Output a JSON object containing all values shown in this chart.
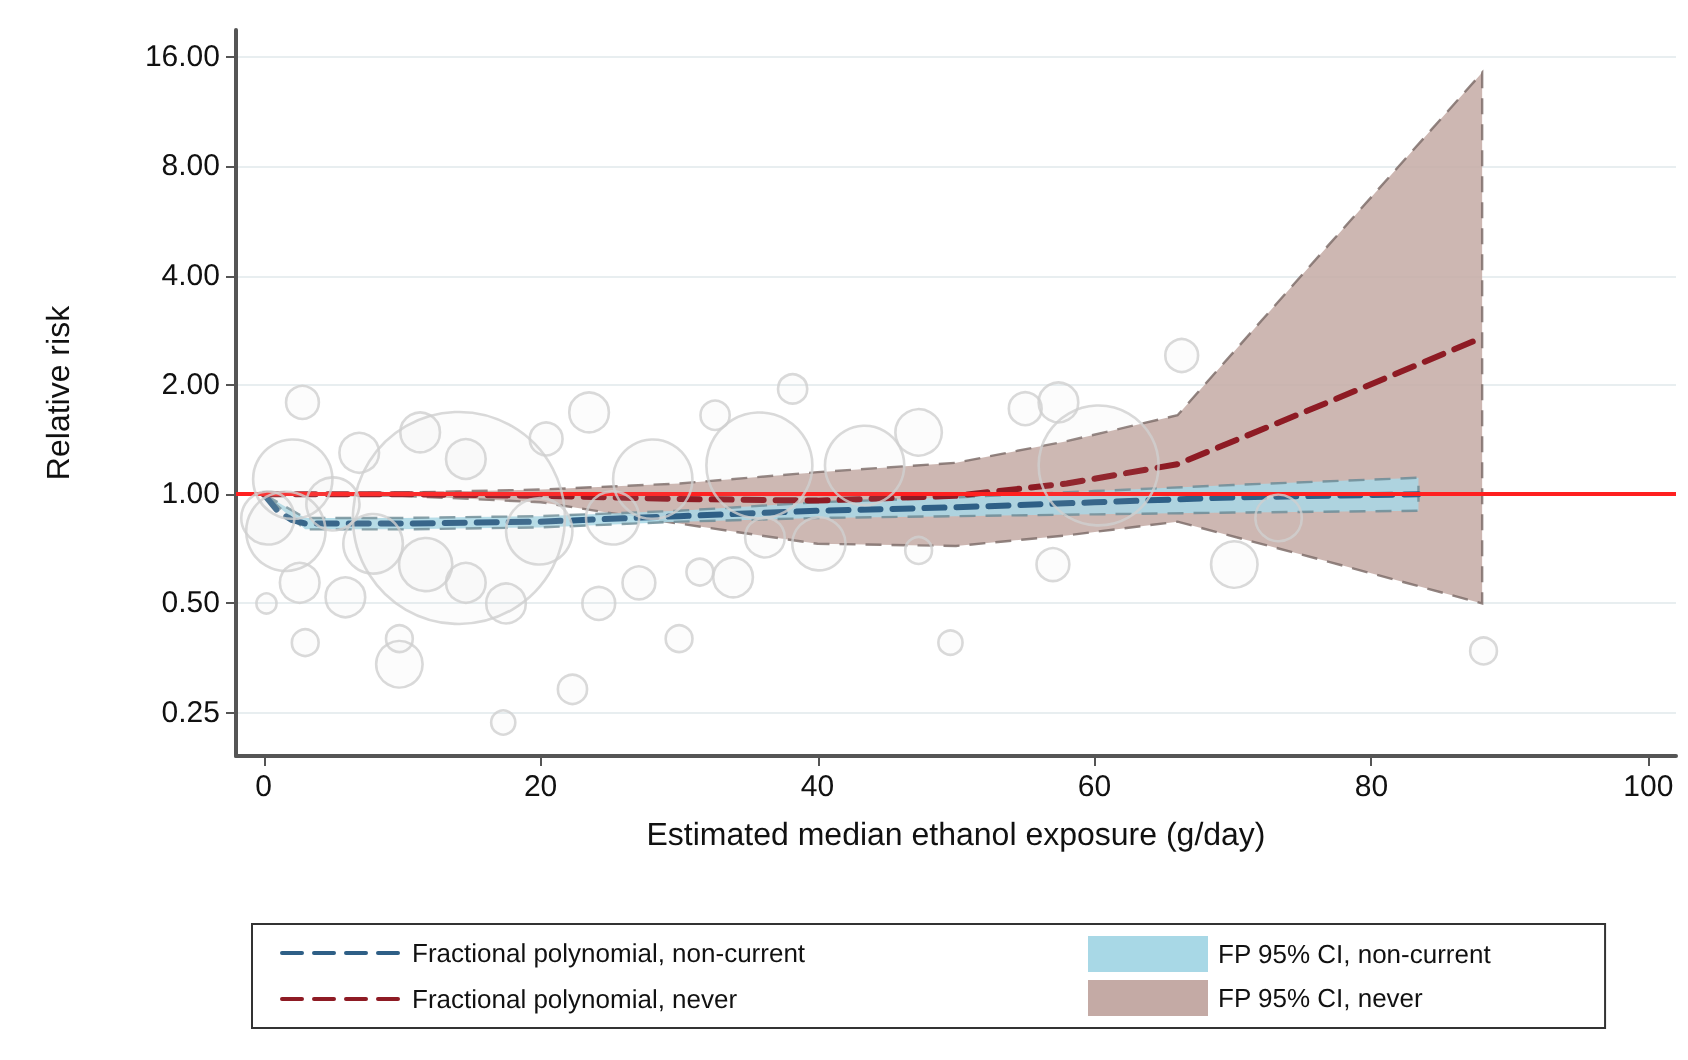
{
  "chart_data": {
    "type": "line",
    "xlabel": "Estimated median ethanol exposure (g/day)",
    "ylabel": "Relative risk",
    "xlim": [
      -2,
      102
    ],
    "xticks": [
      0,
      20,
      40,
      60,
      80,
      100
    ],
    "ylim": [
      0.19,
      19
    ],
    "yticks": [
      {
        "value": 0.25,
        "label": "0.25"
      },
      {
        "value": 0.5,
        "label": "0.50"
      },
      {
        "value": 1,
        "label": "1.00"
      },
      {
        "value": 2,
        "label": "2.00"
      },
      {
        "value": 4,
        "label": "4.00"
      },
      {
        "value": 8,
        "label": "8.00"
      },
      {
        "value": 16,
        "label": "16.00"
      }
    ],
    "log": "y",
    "grid": "y",
    "legend": "bottom",
    "ref_lines": [
      {
        "axis": "y",
        "value": 1,
        "color": "#ff2020"
      }
    ],
    "series": [
      {
        "type": "bubble",
        "color": "#d0d0d0",
        "marker": "circle",
        "x": [
          2.8,
          0.2,
          3.0,
          9.8,
          9.8,
          17.3,
          22.3,
          30.0,
          23.5,
          38.2,
          32.6,
          14.1,
          2.1,
          11.3,
          5.9,
          17.5,
          24.2,
          35.8,
          28.1,
          19.9,
          1.6,
          33.9,
          27.1,
          14.6,
          6.9,
          31.5,
          20.4,
          0.3,
          11.7,
          25.2,
          66.3,
          57.4,
          55.0,
          47.3,
          49.6,
          88.1,
          70.1,
          57.0,
          60.3,
          43.4,
          47.3,
          40.1,
          73.3,
          5.0,
          7.9,
          14.6,
          2.6,
          36.2
        ],
        "values": [
          1.79,
          0.5,
          0.39,
          0.34,
          0.4,
          0.235,
          0.29,
          0.4,
          1.68,
          1.95,
          1.65,
          0.86,
          1.1,
          1.48,
          0.52,
          0.5,
          0.5,
          1.2,
          1.1,
          0.79,
          0.79,
          0.59,
          0.57,
          1.25,
          1.3,
          0.61,
          1.42,
          0.86,
          0.64,
          0.86,
          2.41,
          1.79,
          1.72,
          1.48,
          0.39,
          0.37,
          0.64,
          0.64,
          1.2,
          1.2,
          0.7,
          0.73,
          0.86,
          0.94,
          0.73,
          0.57,
          0.57,
          0.76
        ],
        "sizes": [
          0.024,
          0.009,
          0.016,
          0.048,
          0.016,
          0.013,
          0.019,
          0.016,
          0.035,
          0.019,
          0.019,
          1,
          0.14,
          0.035,
          0.035,
          0.035,
          0.024,
          0.25,
          0.14,
          0.098,
          0.14,
          0.035,
          0.024,
          0.035,
          0.035,
          0.016,
          0.024,
          0.063,
          0.063,
          0.063,
          0.024,
          0.035,
          0.024,
          0.048,
          0.013,
          0.016,
          0.048,
          0.024,
          0.32,
          0.14,
          0.016,
          0.063,
          0.048,
          0.063,
          0.079,
          0.035,
          0.035,
          0.035
        ]
      },
      {
        "type": "area",
        "name": "FP 95% CI, never",
        "color": "#c4aaa5",
        "x": [
          0,
          10,
          20,
          30,
          40,
          50,
          58,
          66,
          77,
          88
        ],
        "values": [
          null,
          null,
          null,
          null,
          null,
          null,
          null,
          null,
          null,
          null
        ],
        "lower": [
          1,
          0.99,
          0.95,
          0.83,
          0.73,
          0.72,
          0.77,
          0.84,
          0.65,
          0.5
        ],
        "upper": [
          1,
          1.01,
          1.03,
          1.07,
          1.15,
          1.22,
          1.4,
          1.65,
          4.9,
          14.5
        ]
      },
      {
        "type": "area",
        "name": "FP 95% CI, non-current",
        "color": "#a8d8e6",
        "x": [
          0,
          3,
          10,
          20,
          30,
          40,
          50,
          60,
          70,
          83.4
        ],
        "values": [
          null,
          null,
          null,
          null,
          null,
          null,
          null,
          null,
          null,
          null
        ],
        "lower": [
          1,
          0.8,
          0.8,
          0.81,
          0.84,
          0.86,
          0.87,
          0.88,
          0.89,
          0.9
        ],
        "upper": [
          1,
          0.86,
          0.86,
          0.87,
          0.9,
          0.95,
          0.98,
          1.02,
          1.06,
          1.11
        ]
      },
      {
        "name": "Fractional polynomial, non-current",
        "color": "#2e5f86",
        "line_style": "dashed",
        "x": [
          0,
          1,
          2,
          3,
          10,
          20,
          30,
          40,
          50,
          60,
          70,
          83.4
        ],
        "values": [
          1,
          0.9,
          0.85,
          0.83,
          0.83,
          0.84,
          0.87,
          0.9,
          0.92,
          0.95,
          0.98,
          1
        ]
      },
      {
        "name": "Fractional polynomial, never",
        "color": "#8e1b24",
        "line_style": "dashed",
        "x": [
          0,
          10,
          20,
          30,
          40,
          50,
          58,
          66,
          77,
          88
        ],
        "values": [
          1,
          1,
          0.99,
          0.97,
          0.96,
          0.99,
          1.07,
          1.21,
          1.8,
          2.7
        ]
      }
    ]
  }
}
